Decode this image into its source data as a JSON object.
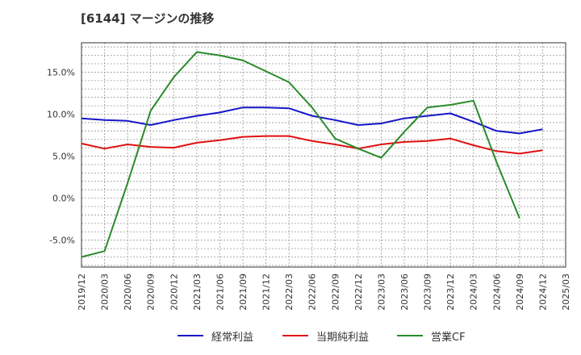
{
  "title": "[6144]  マージンの推移",
  "colors": {
    "plot_background": "#ffffff",
    "grid": "#999999",
    "axis": "#333333"
  },
  "chart_data": {
    "type": "line",
    "title": "[6144]  マージンの推移",
    "xlabel": "",
    "ylabel": "",
    "categories": [
      "2019/12",
      "2020/03",
      "2020/06",
      "2020/09",
      "2020/12",
      "2021/03",
      "2021/06",
      "2021/09",
      "2021/12",
      "2022/03",
      "2022/06",
      "2022/09",
      "2022/12",
      "2023/03",
      "2023/06",
      "2023/09",
      "2023/12",
      "2024/03",
      "2024/06",
      "2024/09",
      "2024/12",
      "2025/03"
    ],
    "ylim": [
      -8.2,
      18.5
    ],
    "yticks": [
      -5,
      0,
      5,
      10,
      15
    ],
    "ytick_labels": [
      "-5.0%",
      "0.0%",
      "5.0%",
      "10.0%",
      "15.0%"
    ],
    "grid": true,
    "legend_position": "bottom",
    "series": [
      {
        "name": "経常利益",
        "color": "#1515c8",
        "values": [
          9.5,
          9.3,
          9.2,
          8.7,
          9.3,
          9.8,
          10.2,
          10.8,
          10.8,
          10.7,
          9.8,
          9.3,
          8.7,
          8.9,
          9.5,
          9.8,
          10.1,
          9.1,
          8.0,
          7.7,
          8.2,
          null
        ]
      },
      {
        "name": "当期純利益",
        "color": "#e01010",
        "values": [
          6.5,
          5.9,
          6.4,
          6.1,
          6.0,
          6.6,
          6.9,
          7.3,
          7.4,
          7.4,
          6.8,
          6.4,
          5.9,
          6.4,
          6.7,
          6.8,
          7.1,
          6.3,
          5.6,
          5.3,
          5.7,
          null
        ]
      },
      {
        "name": "営業CF",
        "color": "#2a8a2a",
        "values": [
          -7.0,
          -6.3,
          1.8,
          10.4,
          14.4,
          17.4,
          17.0,
          16.4,
          15.1,
          13.8,
          10.8,
          7.1,
          5.9,
          4.8,
          7.9,
          10.8,
          11.1,
          11.6,
          4.3,
          -2.4,
          null,
          null
        ]
      }
    ]
  }
}
